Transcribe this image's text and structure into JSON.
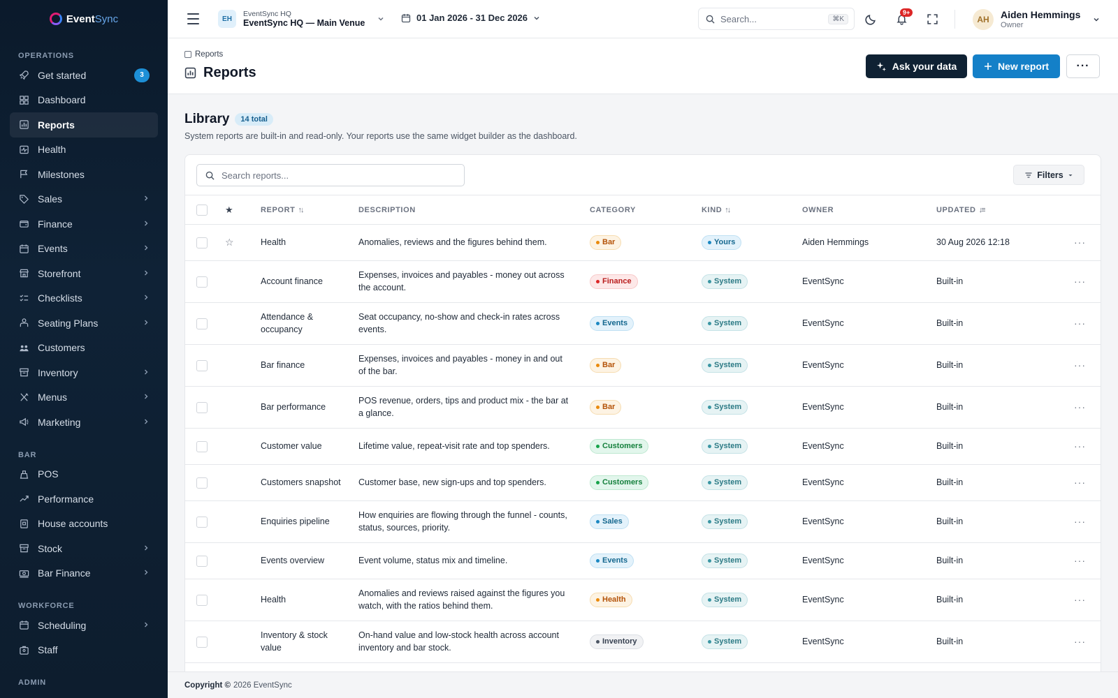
{
  "brand": {
    "part1": "Event",
    "part2": "Sync"
  },
  "sidebar": {
    "sections": [
      {
        "title": "OPERATIONS",
        "items": [
          {
            "label": "Get started",
            "icon": "rocket-icon",
            "badge": "3"
          },
          {
            "label": "Dashboard",
            "icon": "grid-icon"
          },
          {
            "label": "Reports",
            "icon": "chart-icon",
            "active": true
          },
          {
            "label": "Health",
            "icon": "pulse-icon"
          },
          {
            "label": "Milestones",
            "icon": "flag-icon"
          },
          {
            "label": "Sales",
            "icon": "tag-icon",
            "chevron": true
          },
          {
            "label": "Finance",
            "icon": "wallet-icon",
            "chevron": true
          },
          {
            "label": "Events",
            "icon": "calendar-icon",
            "chevron": true
          },
          {
            "label": "Storefront",
            "icon": "store-icon",
            "chevron": true
          },
          {
            "label": "Checklists",
            "icon": "checklist-icon",
            "chevron": true
          },
          {
            "label": "Seating Plans",
            "icon": "seat-icon",
            "chevron": true
          },
          {
            "label": "Customers",
            "icon": "users-icon"
          },
          {
            "label": "Inventory",
            "icon": "box-icon",
            "chevron": true
          },
          {
            "label": "Menus",
            "icon": "utensils-icon",
            "chevron": true
          },
          {
            "label": "Marketing",
            "icon": "megaphone-icon",
            "chevron": true
          }
        ]
      },
      {
        "title": "BAR",
        "items": [
          {
            "label": "POS",
            "icon": "register-icon"
          },
          {
            "label": "Performance",
            "icon": "trend-icon"
          },
          {
            "label": "House accounts",
            "icon": "book-icon"
          },
          {
            "label": "Stock",
            "icon": "box-icon",
            "chevron": true
          },
          {
            "label": "Bar Finance",
            "icon": "cash-icon",
            "chevron": true
          }
        ]
      },
      {
        "title": "WORKFORCE",
        "items": [
          {
            "label": "Scheduling",
            "icon": "calendar-icon",
            "chevron": true
          },
          {
            "label": "Staff",
            "icon": "badge-icon"
          }
        ]
      },
      {
        "title": "ADMIN",
        "items": []
      }
    ]
  },
  "topbar": {
    "venue_badge": "EH",
    "venue_sub": "EventSync HQ",
    "venue_main": "EventSync HQ — Main Venue",
    "date_range": "01 Jan 2026 - 31 Dec 2026",
    "search_placeholder": "Search...",
    "search_shortcut": "⌘K",
    "notif_count": "9+",
    "user_initials": "AH",
    "user_name": "Aiden Hemmings",
    "user_role": "Owner"
  },
  "header": {
    "breadcrumb": "Reports",
    "title": "Reports",
    "ask_label": "Ask your data",
    "new_label": "New report",
    "more_label": "···"
  },
  "library": {
    "title": "Library",
    "total": "14 total",
    "description": "System reports are built-in and read-only. Your reports use the same widget builder as the dashboard.",
    "search_placeholder": "Search reports...",
    "filters_label": "Filters"
  },
  "table": {
    "columns": {
      "report": "REPORT",
      "description": "DESCRIPTION",
      "category": "CATEGORY",
      "kind": "KIND",
      "owner": "OWNER",
      "updated": "UPDATED"
    },
    "rows": [
      {
        "name": "Health",
        "desc": "Anomalies, reviews and the figures behind them.",
        "category": "Bar",
        "kind": "Yours",
        "owner": "Aiden Hemmings",
        "updated": "30 Aug 2026 12:18",
        "star": true
      },
      {
        "name": "Account finance",
        "desc": "Expenses, invoices and payables - money out across the account.",
        "category": "Finance",
        "kind": "System",
        "owner": "EventSync",
        "updated": "Built-in"
      },
      {
        "name": "Attendance & occupancy",
        "desc": "Seat occupancy, no-show and check-in rates across events.",
        "category": "Events",
        "kind": "System",
        "owner": "EventSync",
        "updated": "Built-in"
      },
      {
        "name": "Bar finance",
        "desc": "Expenses, invoices and payables - money in and out of the bar.",
        "category": "Bar",
        "kind": "System",
        "owner": "EventSync",
        "updated": "Built-in"
      },
      {
        "name": "Bar performance",
        "desc": "POS revenue, orders, tips and product mix - the bar at a glance.",
        "category": "Bar",
        "kind": "System",
        "owner": "EventSync",
        "updated": "Built-in"
      },
      {
        "name": "Customer value",
        "desc": "Lifetime value, repeat-visit rate and top spenders.",
        "category": "Customers",
        "kind": "System",
        "owner": "EventSync",
        "updated": "Built-in"
      },
      {
        "name": "Customers snapshot",
        "desc": "Customer base, new sign-ups and top spenders.",
        "category": "Customers",
        "kind": "System",
        "owner": "EventSync",
        "updated": "Built-in"
      },
      {
        "name": "Enquiries pipeline",
        "desc": "How enquiries are flowing through the funnel - counts, status, sources, priority.",
        "category": "Sales",
        "kind": "System",
        "owner": "EventSync",
        "updated": "Built-in"
      },
      {
        "name": "Events overview",
        "desc": "Event volume, status mix and timeline.",
        "category": "Events",
        "kind": "System",
        "owner": "EventSync",
        "updated": "Built-in"
      },
      {
        "name": "Health",
        "desc": "Anomalies and reviews raised against the figures you watch, with the ratios behind them.",
        "category": "Health",
        "kind": "System",
        "owner": "EventSync",
        "updated": "Built-in"
      },
      {
        "name": "Inventory & stock value",
        "desc": "On-hand value and low-stock health across account inventory and bar stock.",
        "category": "Inventory",
        "kind": "System",
        "owner": "EventSync",
        "updated": "Built-in"
      }
    ]
  },
  "pill_colors": {
    "Bar": {
      "bg": "#fdf3e3",
      "fg": "#b45309",
      "border": "#f6dcb0",
      "dot": "#ea8a0c"
    },
    "Finance": {
      "bg": "#fde8e8",
      "fg": "#b91c1c",
      "border": "#f8c9c9",
      "dot": "#dc2626"
    },
    "Events": {
      "bg": "#e3f2fb",
      "fg": "#15688f",
      "border": "#bfe0f3",
      "dot": "#1b88c2"
    },
    "Customers": {
      "bg": "#e2f6ec",
      "fg": "#15803d",
      "border": "#bde8d0",
      "dot": "#16a34a"
    },
    "Sales": {
      "bg": "#e3f2fb",
      "fg": "#15688f",
      "border": "#bfe0f3",
      "dot": "#1b88c2"
    },
    "Health": {
      "bg": "#fdf3e3",
      "fg": "#b45309",
      "border": "#f6dcb0",
      "dot": "#ea8a0c"
    },
    "Inventory": {
      "bg": "#f1f2f4",
      "fg": "#374151",
      "border": "#dcdfe4",
      "dot": "#4b5563"
    },
    "Yours": {
      "bg": "#e3f2fb",
      "fg": "#15688f",
      "border": "#bfe0f3",
      "dot": "#1b88c2"
    },
    "System": {
      "bg": "#e6f3f4",
      "fg": "#2c7a85",
      "border": "#c4e2e6",
      "dot": "#3a96a3"
    }
  },
  "footer": {
    "copyright": "Copyright ©",
    "text": "2026 EventSync"
  }
}
